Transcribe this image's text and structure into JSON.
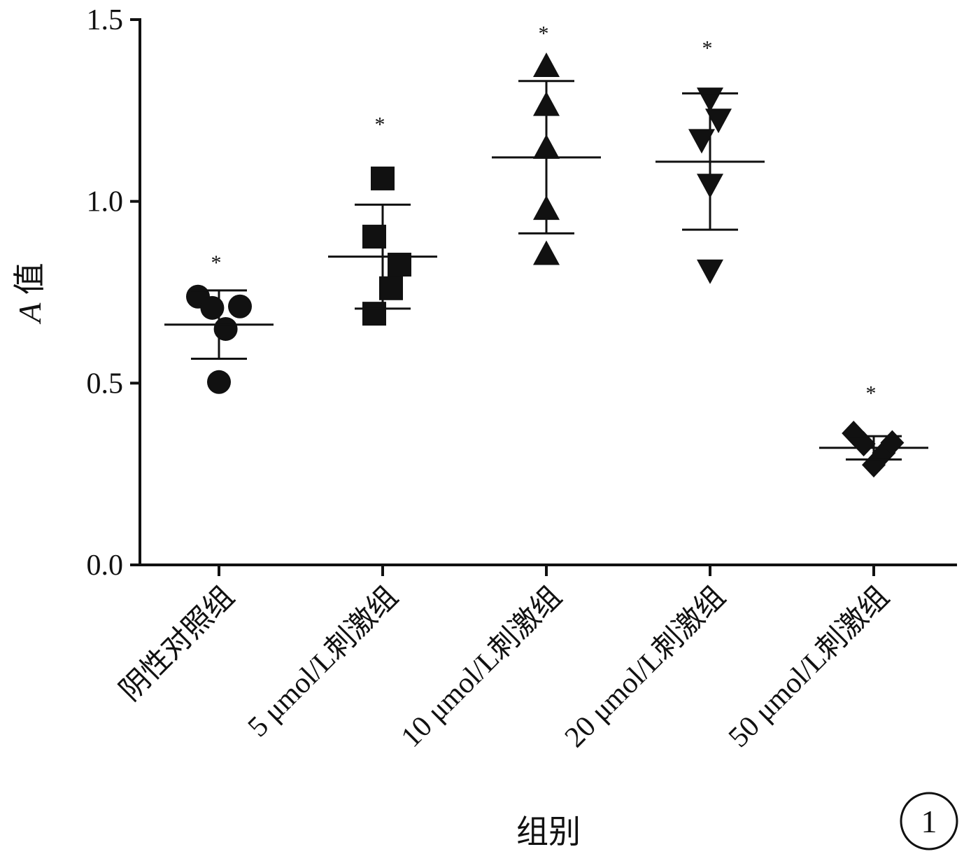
{
  "chart_data": {
    "type": "scatter",
    "ylabel_italic": "A",
    "ylabel_rest": " 值",
    "xlabel": "组别",
    "ylim": [
      0,
      1.5
    ],
    "yticks": [
      0.0,
      0.5,
      1.0,
      1.5
    ],
    "ytick_labels": [
      "0.0",
      "0.5",
      "1.0",
      "1.5"
    ],
    "grid": false,
    "panel_label": "1",
    "categories": [
      "阴性对照组",
      "5 μmol/L刺激组",
      "10 μmol/L刺激组",
      "20 μmol/L刺激组",
      "50 μmol/L刺激组"
    ],
    "series": [
      {
        "marker": "circle",
        "points": [
          {
            "dx": -0.25,
            "y": 0.738
          },
          {
            "dx": -0.08,
            "y": 0.707
          },
          {
            "dx": 0.08,
            "y": 0.649
          },
          {
            "dx": 0.25,
            "y": 0.711
          },
          {
            "dx": 0.0,
            "y": 0.503
          }
        ],
        "mean": 0.661,
        "err_low": 0.567,
        "err_high": 0.755,
        "significance": "*",
        "sig_y": 0.84
      },
      {
        "marker": "square",
        "points": [
          {
            "dx": 0.0,
            "y": 1.063
          },
          {
            "dx": -0.1,
            "y": 0.903
          },
          {
            "dx": 0.2,
            "y": 0.826
          },
          {
            "dx": 0.1,
            "y": 0.761
          },
          {
            "dx": -0.1,
            "y": 0.691
          }
        ],
        "mean": 0.848,
        "err_low": 0.705,
        "err_high": 0.991,
        "significance": "*",
        "sig_y": 1.22
      },
      {
        "marker": "triangle-up",
        "points": [
          {
            "dx": 0.0,
            "y": 1.369
          },
          {
            "dx": 0.0,
            "y": 1.262
          },
          {
            "dx": 0.0,
            "y": 1.144
          },
          {
            "dx": 0.0,
            "y": 0.976
          },
          {
            "dx": 0.0,
            "y": 0.852
          }
        ],
        "mean": 1.121,
        "err_low": 0.912,
        "err_high": 1.331,
        "significance": "*",
        "sig_y": 1.47
      },
      {
        "marker": "triangle-down",
        "points": [
          {
            "dx": 0.0,
            "y": 1.286
          },
          {
            "dx": 0.1,
            "y": 1.228
          },
          {
            "dx": -0.1,
            "y": 1.172
          },
          {
            "dx": 0.0,
            "y": 1.049
          },
          {
            "dx": 0.0,
            "y": 0.813
          }
        ],
        "mean": 1.109,
        "err_low": 0.922,
        "err_high": 1.297,
        "significance": "*",
        "sig_y": 1.43
      },
      {
        "marker": "diamond",
        "points": [
          {
            "dx": -0.24,
            "y": 0.362
          },
          {
            "dx": -0.12,
            "y": 0.333
          },
          {
            "dx": 0.0,
            "y": 0.275
          },
          {
            "dx": 0.12,
            "y": 0.308
          },
          {
            "dx": 0.22,
            "y": 0.336
          }
        ],
        "mean": 0.322,
        "err_low": 0.29,
        "err_high": 0.354,
        "significance": "*",
        "sig_y": 0.48
      }
    ]
  }
}
